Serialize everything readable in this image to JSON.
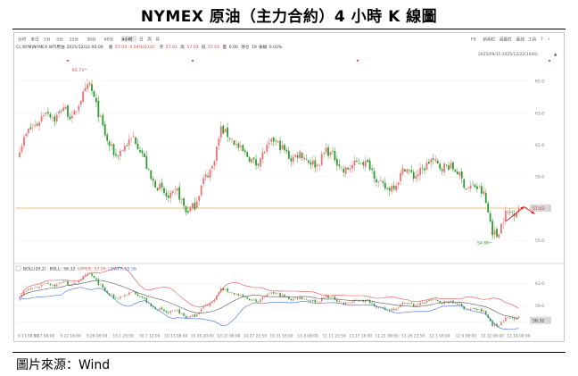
{
  "page": {
    "title": "NYMEX 原油（主力合約）4 小時 K 線圖",
    "source": "圖片來源：Wind"
  },
  "toolbar": {
    "periods": [
      "分时",
      "多日",
      "1分",
      "5分",
      "15分",
      "30分",
      "60分",
      "4小时",
      "日",
      "周",
      "月"
    ],
    "active_period": "4小时",
    "right_items": [
      "F9",
      "新闻栏",
      "画图栏",
      "画线",
      "工具"
    ]
  },
  "info_bar": {
    "symbol": "CL.NYM|NYMEX WTI原油",
    "datetime": "2025/12/22 00:00",
    "change_label": "收",
    "change_value": "57.03",
    "change_detail": "0.04%(0.02)",
    "open_label": "开",
    "open_value": "57.02",
    "high_label": "高",
    "high_value": "57.03",
    "low_label": "低",
    "low_value": "57.02",
    "vol_label": "量",
    "vol_value": "0.00",
    "oi_label": "持仓",
    "oi_value": "19",
    "amp_label": "振幅",
    "amp_value": "0.02%",
    "range_text": "2025/09/11-2025/12/22(1044)"
  },
  "indicator": {
    "label": "BOLL(20,2)",
    "boll_label": "BOLL:",
    "boll_value": "56.32",
    "upper_label": "UPPER:",
    "upper_value": "57.09",
    "lower_label": "LOWER:",
    "lower_value": "55.56",
    "last_value": "56.32"
  },
  "colors": {
    "up": "#ef6f6f",
    "down": "#2a9a2a",
    "price_line": "#f0b35a",
    "boll_mid": "#555555",
    "boll_upper": "#e05050",
    "boll_lower": "#3f6fd1",
    "arrow": "#e02020",
    "price_tag": "#d8d8d8"
  },
  "chart_data": {
    "type": "candlestick",
    "x_tick_labels": [
      "9.11 08:00",
      "9.17 08:00",
      "9.22 16:00",
      "9.26 08:00",
      "10.1 23:59",
      "10.7 12:00",
      "10.13 08:00",
      "10.16 20:00",
      "10.22 08:00",
      "10.27 23:59",
      "10.31 16:00",
      "11.4 08:00",
      "11.11 23:59",
      "11.17 16:00",
      "11.21 08:00",
      "11.26 23:59",
      "12.3 16:00",
      "12.9 08:00",
      "12.12 08:00",
      "12.18 00:00"
    ],
    "y_tick_labels": [
      "65.0",
      "63.0",
      "61.0",
      "59.0",
      "57.0",
      "55.0"
    ],
    "ylim": [
      54.0,
      66.0
    ],
    "indicator_y_tick_labels": [
      "63.0",
      "59.0",
      "56.0"
    ],
    "indicator_ylim": [
      54.5,
      65.0
    ],
    "last_price": 57.03,
    "annotations": [
      {
        "text": "65.73",
        "value": 65.73,
        "kind": "high"
      },
      {
        "text": "54.88",
        "value": 54.88,
        "kind": "low"
      }
    ],
    "close_anchors": [
      [
        0,
        60.8
      ],
      [
        4,
        61.9
      ],
      [
        8,
        62.3
      ],
      [
        12,
        63.2
      ],
      [
        16,
        62.6
      ],
      [
        20,
        63.4
      ],
      [
        24,
        62.6
      ],
      [
        28,
        63.9
      ],
      [
        32,
        64.8
      ],
      [
        36,
        63.0
      ],
      [
        40,
        61.2
      ],
      [
        44,
        60.3
      ],
      [
        48,
        60.9
      ],
      [
        52,
        61.5
      ],
      [
        56,
        60.5
      ],
      [
        60,
        58.8
      ],
      [
        64,
        58.3
      ],
      [
        68,
        57.6
      ],
      [
        72,
        58.1
      ],
      [
        76,
        56.8
      ],
      [
        80,
        57.2
      ],
      [
        84,
        58.8
      ],
      [
        88,
        59.6
      ],
      [
        92,
        62.0
      ],
      [
        96,
        61.5
      ],
      [
        100,
        60.8
      ],
      [
        104,
        60.3
      ],
      [
        108,
        59.8
      ],
      [
        112,
        60.6
      ],
      [
        116,
        61.3
      ],
      [
        120,
        60.8
      ],
      [
        124,
        60.1
      ],
      [
        128,
        60.5
      ],
      [
        132,
        60.0
      ],
      [
        136,
        59.7
      ],
      [
        140,
        60.7
      ],
      [
        144,
        60.2
      ],
      [
        148,
        59.3
      ],
      [
        152,
        59.7
      ],
      [
        156,
        60.0
      ],
      [
        160,
        59.7
      ],
      [
        164,
        58.6
      ],
      [
        168,
        58.2
      ],
      [
        172,
        58.6
      ],
      [
        176,
        59.6
      ],
      [
        180,
        59.0
      ],
      [
        184,
        59.4
      ],
      [
        188,
        60.1
      ],
      [
        192,
        59.6
      ],
      [
        196,
        59.7
      ],
      [
        200,
        59.3
      ],
      [
        204,
        58.3
      ],
      [
        208,
        58.4
      ],
      [
        212,
        57.9
      ],
      [
        216,
        55.6
      ],
      [
        218,
        55.3
      ],
      [
        222,
        56.7
      ],
      [
        226,
        56.8
      ],
      [
        228,
        57.03
      ]
    ]
  }
}
